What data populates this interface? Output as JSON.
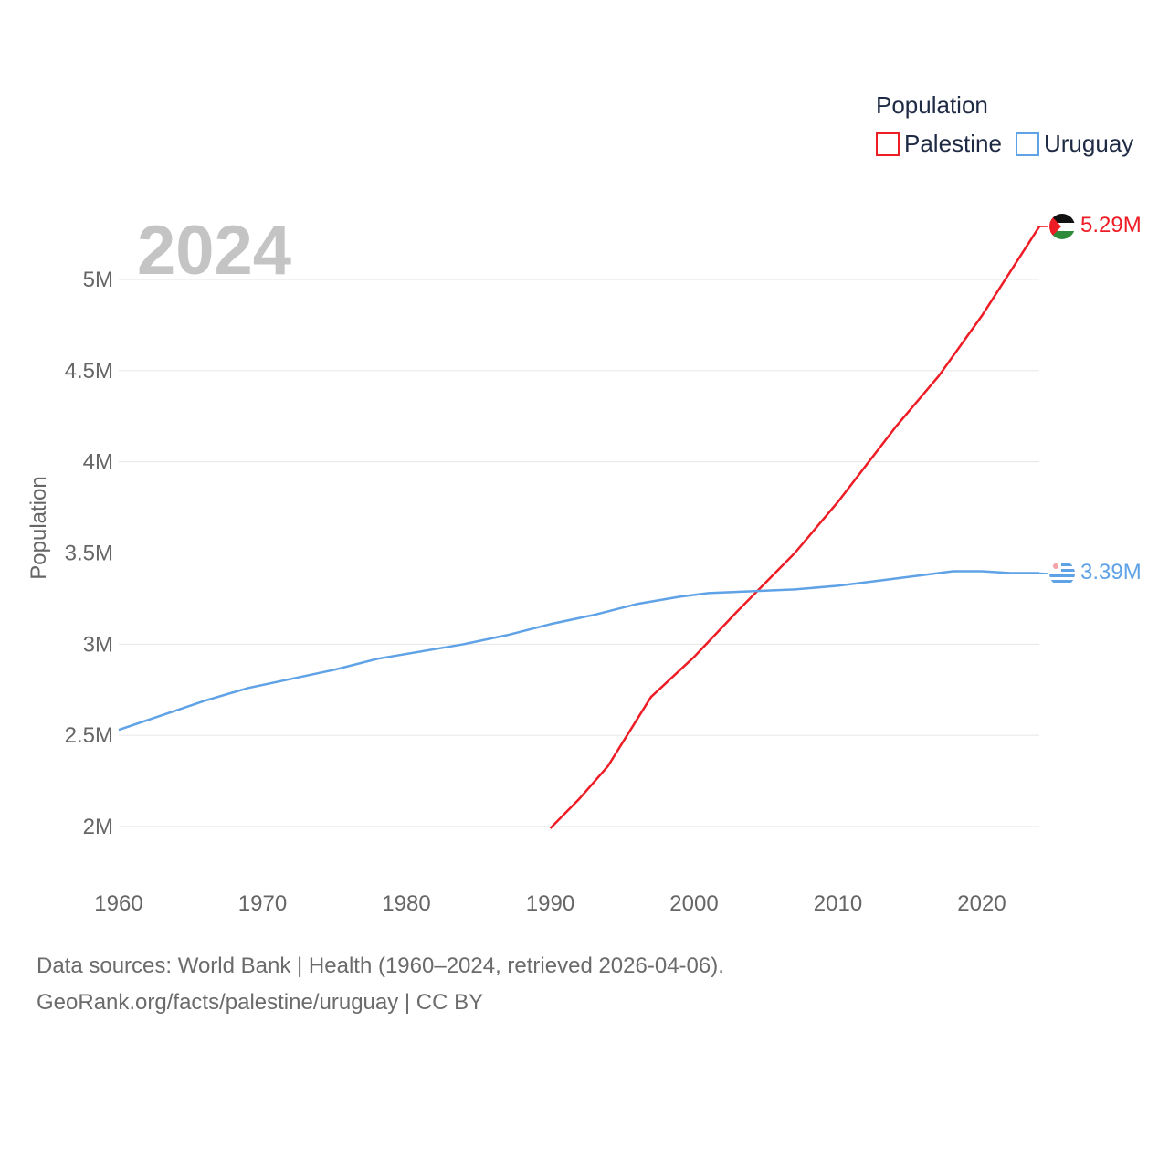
{
  "chart_data": {
    "type": "line",
    "title": "",
    "year_label": "2024",
    "xlabel": "",
    "ylabel": "Population",
    "xlim": [
      1960,
      2024
    ],
    "ylim": [
      1800000,
      5350000
    ],
    "x_ticks": [
      1960,
      1970,
      1980,
      1990,
      2000,
      2010,
      2020
    ],
    "y_ticks": [
      {
        "value": 2000000,
        "label": "2M"
      },
      {
        "value": 2500000,
        "label": "2.5M"
      },
      {
        "value": 3000000,
        "label": "3M"
      },
      {
        "value": 3500000,
        "label": "3.5M"
      },
      {
        "value": 4000000,
        "label": "4M"
      },
      {
        "value": 4500000,
        "label": "4.5M"
      },
      {
        "value": 5000000,
        "label": "5M"
      }
    ],
    "grid": true,
    "legend": {
      "title": "Population",
      "position": "top-right"
    },
    "series": [
      {
        "name": "Palestine",
        "color": "#ee1c25",
        "end_label": "5.29M",
        "x": [
          1990,
          1992,
          1994,
          1997,
          2000,
          2003,
          2007,
          2010,
          2014,
          2017,
          2020,
          2024
        ],
        "values": [
          1990000,
          2150000,
          2330000,
          2710000,
          2930000,
          3180000,
          3500000,
          3780000,
          4190000,
          4470000,
          4800000,
          5290000
        ]
      },
      {
        "name": "Uruguay",
        "color": "#5fa2e6",
        "end_label": "3.39M",
        "x": [
          1960,
          1963,
          1966,
          1969,
          1972,
          1975,
          1978,
          1981,
          1984,
          1987,
          1990,
          1993,
          1996,
          1999,
          2001,
          2004,
          2007,
          2010,
          2013,
          2016,
          2018,
          2020,
          2022,
          2024
        ],
        "values": [
          2530000,
          2610000,
          2690000,
          2760000,
          2810000,
          2860000,
          2920000,
          2960000,
          3000000,
          3050000,
          3110000,
          3160000,
          3220000,
          3260000,
          3280000,
          3290000,
          3300000,
          3320000,
          3350000,
          3380000,
          3400000,
          3400000,
          3390000,
          3390000
        ]
      }
    ]
  },
  "footer": {
    "line1": "Data sources: World Bank | Health (1960–2024, retrieved 2026-04-06).",
    "line2": "GeoRank.org/facts/palestine/uruguay | CC BY"
  }
}
